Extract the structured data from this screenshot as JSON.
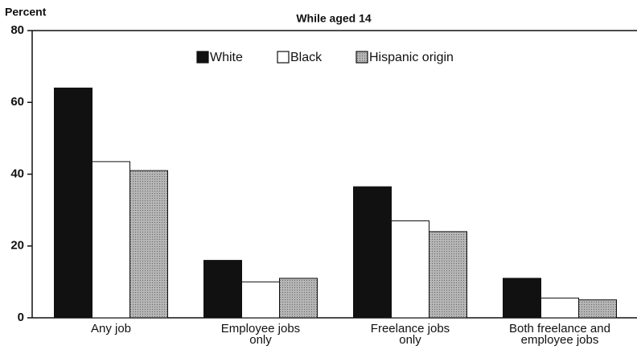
{
  "chart_data": {
    "type": "bar",
    "title": "While aged 14",
    "y_label": "Percent",
    "categories": [
      "Any job",
      "Employee jobs only",
      "Freelance jobs only",
      "Both freelance and employee jobs"
    ],
    "series": [
      {
        "name": "White",
        "color": "#111111",
        "values": [
          64,
          16,
          36.5,
          11
        ]
      },
      {
        "name": "Black",
        "color": "#ffffff",
        "values": [
          43.5,
          10,
          27,
          5.5
        ]
      },
      {
        "name": "Hispanic origin",
        "color": "#a8a8a8",
        "values": [
          41,
          11,
          24,
          5
        ]
      }
    ],
    "ylim": [
      0,
      80
    ],
    "yticks": [
      0,
      20,
      40,
      60,
      80
    ],
    "grid": false,
    "legend": "top"
  }
}
